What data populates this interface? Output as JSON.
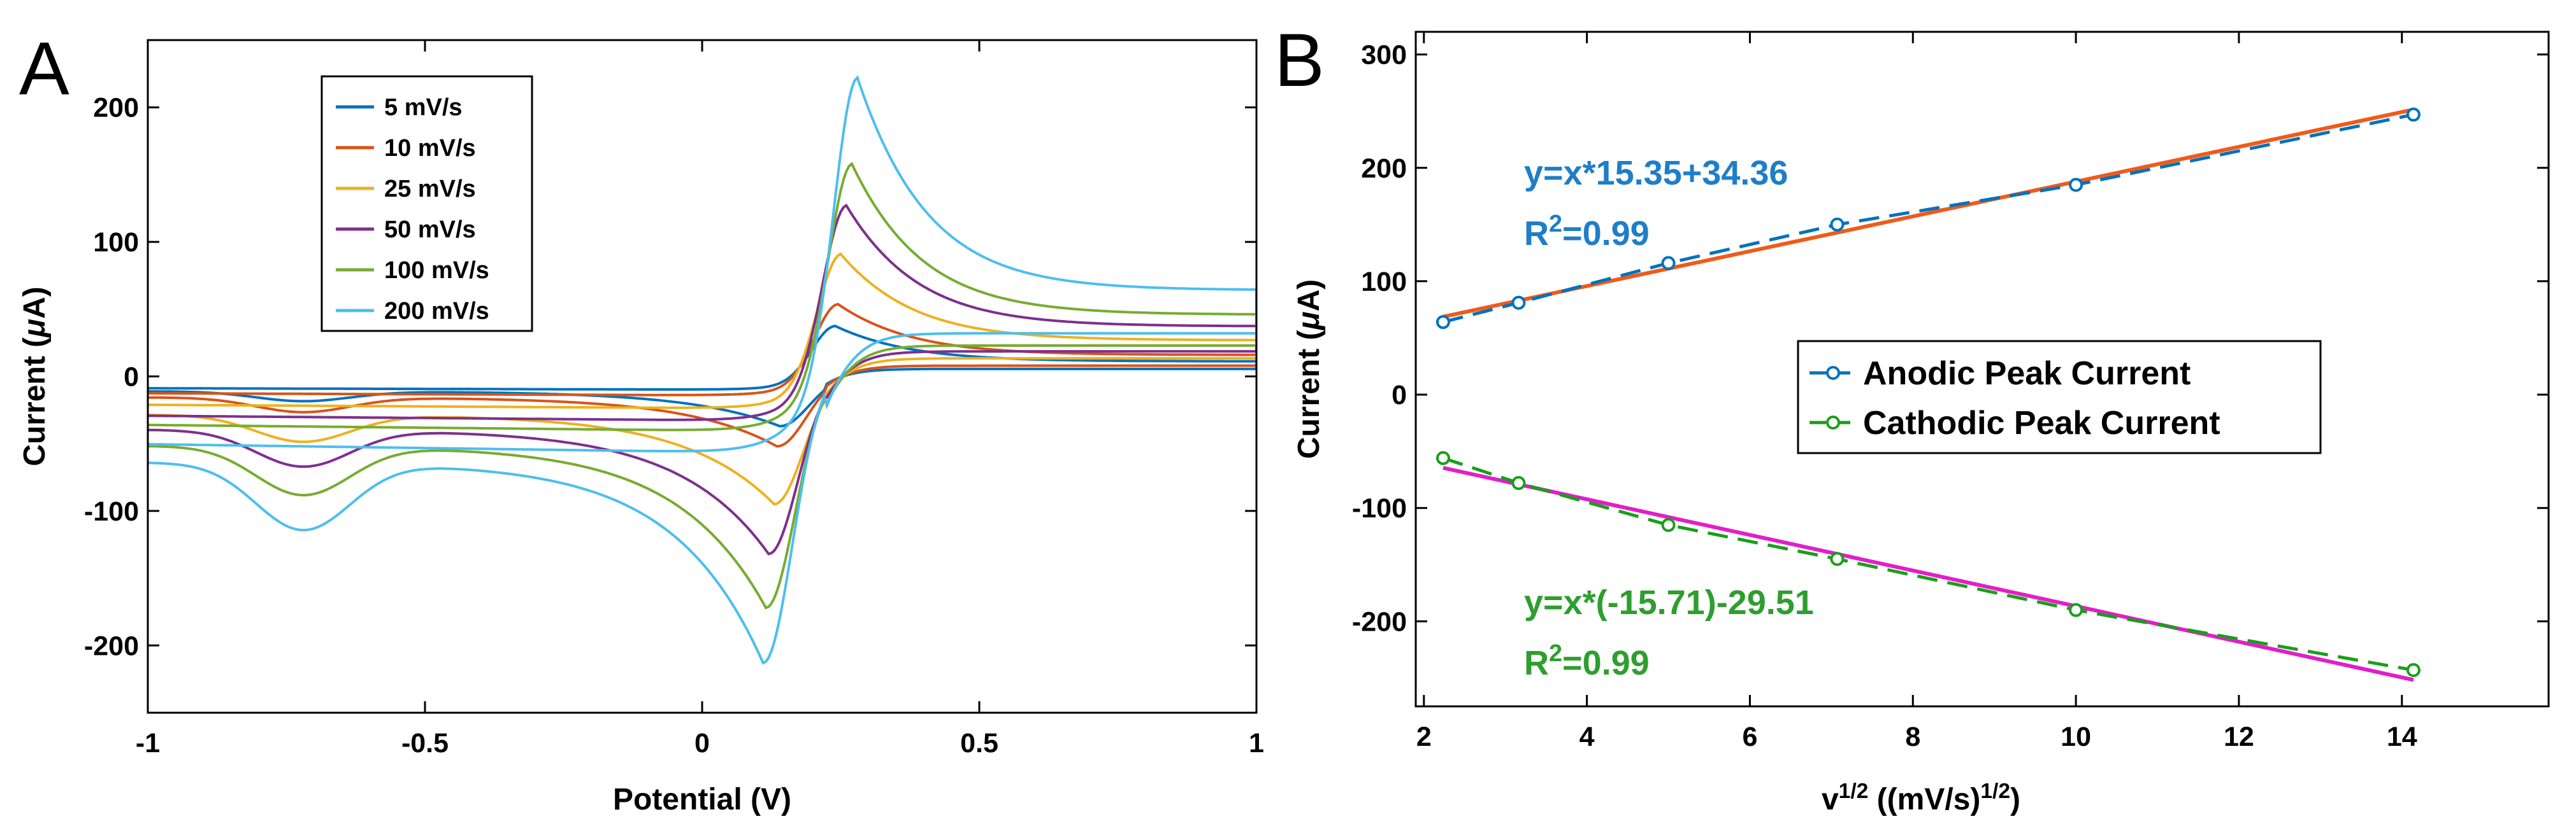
{
  "chart_data": [
    {
      "panel": "A",
      "type": "line",
      "title": "",
      "xlabel": "Potential (V)",
      "ylabel": "Current (μA)",
      "ylabel_parts": [
        "Current (",
        "μ",
        "A)"
      ],
      "xlim": [
        -1,
        1
      ],
      "ylim": [
        -250,
        250
      ],
      "xticks": [
        -1,
        -0.5,
        0,
        0.5,
        1
      ],
      "xtick_labels": [
        "-1",
        "-0.5",
        "0",
        "0.5",
        "1"
      ],
      "yticks": [
        -200,
        -100,
        0,
        100,
        200
      ],
      "ytick_labels": [
        "-200",
        "-100",
        "0",
        "100",
        "200"
      ],
      "legend_position": "top-left",
      "series": [
        {
          "name": "5 mV/s",
          "color": "#0072BD",
          "ipa": 40,
          "epa": 0.24,
          "ipc": -37,
          "epc": 0.14,
          "amp": 8
        },
        {
          "name": "10 mV/s",
          "color": "#D95319",
          "ipa": 57,
          "epa": 0.245,
          "ipc": -52,
          "epc": 0.135,
          "amp": 12
        },
        {
          "name": "25 mV/s",
          "color": "#EDB120",
          "ipa": 96,
          "epa": 0.25,
          "ipc": -95,
          "epc": 0.13,
          "amp": 22
        },
        {
          "name": "50 mV/s",
          "color": "#7E2F8E",
          "ipa": 133,
          "epa": 0.26,
          "ipc": -132,
          "epc": 0.12,
          "amp": 30
        },
        {
          "name": "100 mV/s",
          "color": "#77AC30",
          "ipa": 164,
          "epa": 0.27,
          "ipc": -172,
          "epc": 0.115,
          "amp": 40
        },
        {
          "name": "200 mV/s",
          "color": "#4DBEEE",
          "ipa": 229,
          "epa": 0.28,
          "ipc": -213,
          "epc": 0.11,
          "amp": 55
        }
      ]
    },
    {
      "panel": "B",
      "type": "scatter",
      "title": "",
      "xlabel": "v1/2 ((mV/s)1/2)",
      "xlabel_parts": [
        "v",
        "1/2",
        " ((mV/s)",
        "1/2",
        ")"
      ],
      "ylabel": "Current (μA)",
      "ylabel_parts": [
        "Current (",
        "μ",
        "A)"
      ],
      "xlim": [
        1.9,
        15.8
      ],
      "ylim": [
        -275,
        320
      ],
      "xticks": [
        2,
        4,
        6,
        8,
        10,
        12,
        14
      ],
      "xtick_labels": [
        "2",
        "4",
        "6",
        "8",
        "10",
        "12",
        "14"
      ],
      "yticks": [
        -200,
        -100,
        0,
        100,
        200,
        300
      ],
      "ytick_labels": [
        "-200",
        "-100",
        "0",
        "100",
        "200",
        "300"
      ],
      "legend_position": "center-right",
      "series": [
        {
          "name": "Anodic Peak Current",
          "color": "#0072BD",
          "x": [
            2.236,
            3.162,
            5.0,
            7.071,
            10.0,
            14.142
          ],
          "y": [
            64,
            81,
            116,
            150,
            185,
            247
          ]
        },
        {
          "name": "Cathodic Peak Current",
          "color": "#1A9E1A",
          "x": [
            2.236,
            3.162,
            5.0,
            7.071,
            10.0,
            14.142
          ],
          "y": [
            -56,
            -78,
            -115,
            -145,
            -190,
            -243
          ]
        }
      ],
      "fits": [
        {
          "slope": 15.35,
          "intercept": 34.36,
          "color": "#F05A1A",
          "equation": "y=x*15.35+34.36",
          "r2_prefix": "R",
          "r2_exp": "2",
          "r2_value": "=0.99",
          "text_color": "#1E7EC8"
        },
        {
          "slope": -15.71,
          "intercept": -29.51,
          "color": "#E21EC9",
          "equation": "y=x*(-15.71)-29.51",
          "r2_prefix": "R",
          "r2_exp": "2",
          "r2_value": "=0.99",
          "text_color": "#2E9E2E"
        }
      ]
    }
  ],
  "panel_labels": [
    "A",
    "B"
  ]
}
